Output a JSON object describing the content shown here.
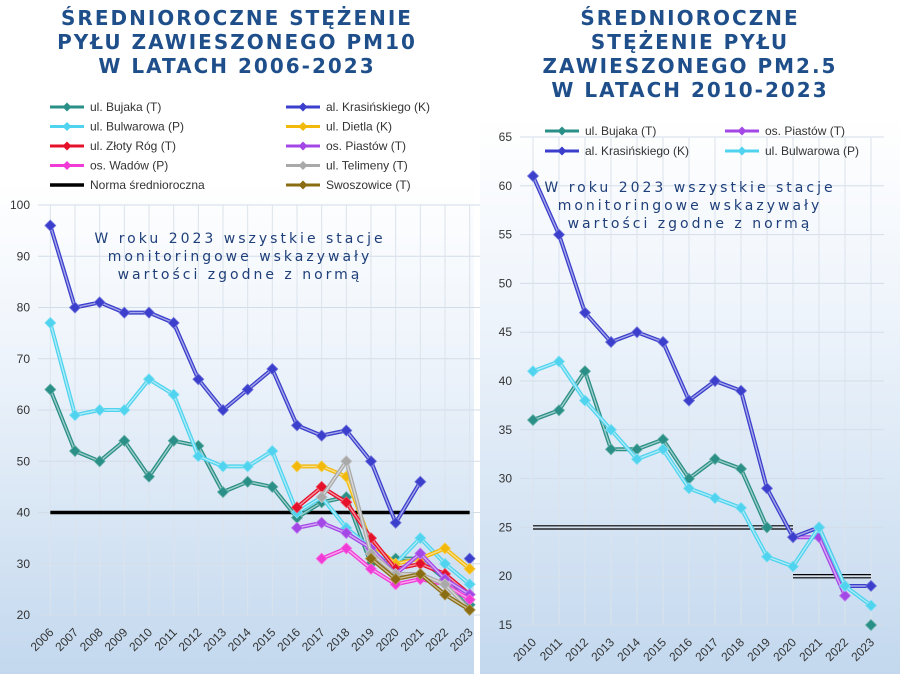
{
  "chart_data": [
    {
      "type": "line",
      "title_lines": [
        "ŚREDNIOROCZNE STĘŻENIE",
        "PYŁU ZAWIESZONEGO PM10",
        "W LATACH 2006-2023"
      ],
      "x": [
        "2006",
        "2007",
        "2008",
        "2009",
        "2010",
        "2011",
        "2012",
        "2013",
        "2014",
        "2015",
        "2016",
        "2017",
        "2018",
        "2019",
        "2020",
        "2021",
        "2022",
        "2023"
      ],
      "ylim": [
        20,
        100
      ],
      "yticks": [
        20,
        30,
        40,
        50,
        60,
        70,
        80,
        90,
        100
      ],
      "grid": true,
      "legend_position": "top",
      "annotation": [
        "W roku 2023 wszystkie stacje",
        "monitoringowe wskazywały",
        "wartości zgodne z normą"
      ],
      "series": [
        {
          "name": "ul. Bujaka (T)",
          "color": "#2a8f86",
          "values": [
            64,
            52,
            50,
            54,
            47,
            54,
            53,
            44,
            46,
            45,
            39,
            42,
            43,
            30,
            31,
            31,
            27,
            22
          ]
        },
        {
          "name": "al. Krasińskiego (K)",
          "color": "#3b3fcc",
          "values": [
            96,
            80,
            81,
            79,
            79,
            77,
            66,
            60,
            64,
            68,
            57,
            55,
            56,
            50,
            38,
            46,
            null,
            31
          ]
        },
        {
          "name": "ul. Bulwarowa (P)",
          "color": "#4fd3ee",
          "values": [
            77,
            59,
            60,
            60,
            66,
            63,
            51,
            49,
            49,
            52,
            40,
            43,
            37,
            33,
            30,
            35,
            30,
            26
          ]
        },
        {
          "name": "ul. Dietla (K)",
          "color": "#f2b90a",
          "values": [
            null,
            null,
            null,
            null,
            null,
            null,
            null,
            null,
            null,
            null,
            49,
            49,
            47,
            34,
            30,
            31,
            33,
            29
          ]
        },
        {
          "name": "ul. Złoty Róg (T)",
          "color": "#e5102a",
          "values": [
            null,
            null,
            null,
            null,
            null,
            null,
            null,
            null,
            null,
            null,
            41,
            45,
            42,
            35,
            29,
            30,
            28,
            24
          ]
        },
        {
          "name": "os. Piastów (T)",
          "color": "#a347e6",
          "values": [
            null,
            null,
            null,
            null,
            null,
            null,
            null,
            null,
            null,
            null,
            37,
            38,
            36,
            33,
            28,
            32,
            27,
            24
          ]
        },
        {
          "name": "os. Wadów (P)",
          "color": "#f03bd6",
          "values": [
            null,
            null,
            null,
            null,
            null,
            null,
            null,
            null,
            null,
            null,
            null,
            31,
            33,
            29,
            26,
            27,
            26,
            23
          ]
        },
        {
          "name": "ul. Telimeny (T)",
          "color": "#a9a9a9",
          "values": [
            null,
            null,
            null,
            null,
            null,
            null,
            null,
            null,
            null,
            null,
            null,
            43,
            50,
            32,
            28,
            28,
            26,
            21
          ]
        },
        {
          "name": "Swoszowice (T)",
          "color": "#8a6d12",
          "values": [
            null,
            null,
            null,
            null,
            null,
            null,
            null,
            null,
            null,
            null,
            null,
            null,
            null,
            31,
            27,
            28,
            24,
            21
          ]
        }
      ],
      "norm": {
        "name": "Norma średnioroczna",
        "value": 40,
        "color": "#000000"
      }
    },
    {
      "type": "line",
      "title_lines": [
        "ŚREDNIOROCZNE",
        "STĘŻENIE PYŁU",
        "ZAWIESZONEGO PM2.5",
        "W LATACH 2010-2023"
      ],
      "x": [
        "2010",
        "2011",
        "2012",
        "2013",
        "2014",
        "2015",
        "2016",
        "2017",
        "2018",
        "2019",
        "2020",
        "2021",
        "2022",
        "2023"
      ],
      "ylim": [
        15,
        65
      ],
      "yticks": [
        15,
        20,
        25,
        30,
        35,
        40,
        45,
        50,
        55,
        60,
        65
      ],
      "grid": true,
      "legend_position": "top",
      "annotation": [
        "W roku 2023 wszystkie stacje",
        "monitoringowe wskazywały",
        "wartości zgodne z normą"
      ],
      "series": [
        {
          "name": "ul. Bujaka (T)",
          "color": "#2a8f86",
          "values": [
            36,
            37,
            41,
            33,
            33,
            34,
            30,
            32,
            31,
            25,
            null,
            null,
            null,
            15
          ]
        },
        {
          "name": "os. Piastów (T)",
          "color": "#a347e6",
          "values": [
            null,
            null,
            null,
            null,
            null,
            null,
            null,
            null,
            null,
            null,
            24,
            24,
            18,
            null
          ]
        },
        {
          "name": "al. Krasińskiego (K)",
          "color": "#3b3fcc",
          "values": [
            61,
            55,
            47,
            44,
            45,
            44,
            38,
            40,
            39,
            29,
            24,
            25,
            19,
            19
          ]
        },
        {
          "name": "ul. Bulwarowa (P)",
          "color": "#4fd3ee",
          "values": [
            41,
            42,
            38,
            35,
            32,
            33,
            29,
            28,
            27,
            22,
            21,
            25,
            19,
            17
          ]
        }
      ],
      "norm_segments": [
        {
          "x_from": "2010",
          "x_to": "2020",
          "value": 25
        },
        {
          "x_from": "2020",
          "x_to": "2023",
          "value": 20
        }
      ]
    }
  ]
}
